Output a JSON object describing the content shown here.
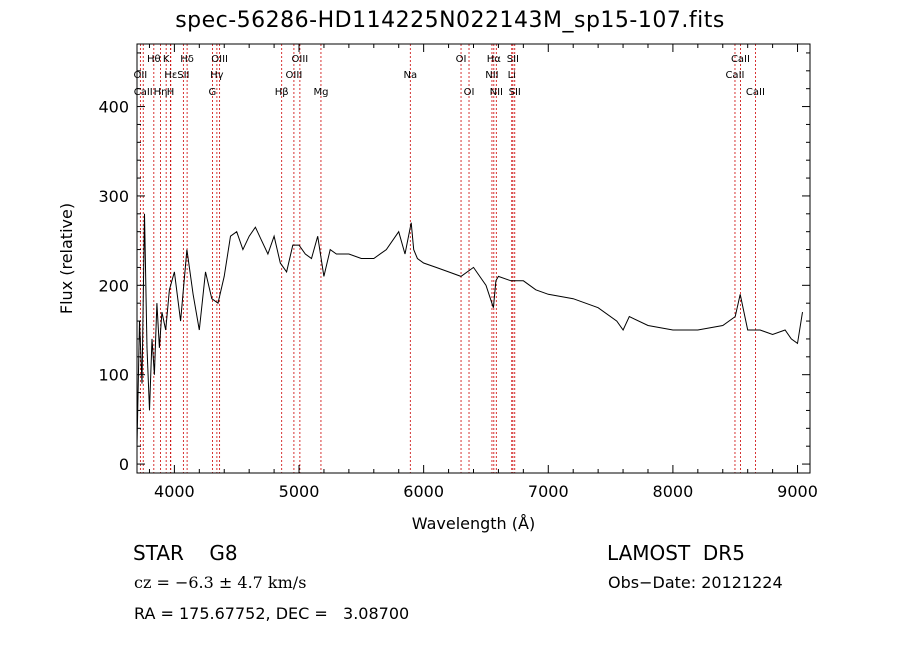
{
  "chart_data": {
    "type": "line",
    "title": "spec-56286-HD114225N022143M_sp15-107.fits",
    "xlabel": "Wavelength (Å)",
    "ylabel": "Flux (relative)",
    "xlim": [
      3700,
      9100
    ],
    "ylim": [
      -10,
      470
    ],
    "xticks": [
      4000,
      5000,
      6000,
      7000,
      8000,
      9000
    ],
    "yticks": [
      0,
      100,
      200,
      300,
      400
    ],
    "grid": false,
    "line_color": "#000000",
    "marker_color": "#cc0000",
    "series": [
      {
        "x": [
          3700,
          3720,
          3740,
          3760,
          3780,
          3800,
          3820,
          3840,
          3860,
          3880,
          3900,
          3930,
          3960,
          4000,
          4050,
          4100,
          4150,
          4200,
          4250,
          4300,
          4350,
          4400,
          4450,
          4500,
          4550,
          4600,
          4650,
          4700,
          4750,
          4800,
          4850,
          4900,
          4950,
          5000,
          5050,
          5100,
          5150,
          5200,
          5250,
          5300,
          5400,
          5500,
          5600,
          5700,
          5800,
          5850,
          5900,
          5920,
          5950,
          6000,
          6100,
          6200,
          6300,
          6400,
          6500,
          6560,
          6580,
          6600,
          6700,
          6800,
          6900,
          7000,
          7200,
          7400,
          7550,
          7600,
          7650,
          7800,
          8000,
          8200,
          8400,
          8500,
          8540,
          8600,
          8700,
          8800,
          8900,
          8950,
          9000,
          9040
        ],
        "y": [
          20,
          160,
          90,
          280,
          130,
          60,
          140,
          100,
          180,
          130,
          170,
          150,
          195,
          215,
          160,
          240,
          190,
          150,
          215,
          185,
          180,
          210,
          255,
          260,
          240,
          255,
          265,
          250,
          235,
          255,
          225,
          215,
          245,
          245,
          235,
          230,
          255,
          210,
          240,
          235,
          235,
          230,
          230,
          240,
          260,
          235,
          270,
          240,
          230,
          225,
          220,
          215,
          210,
          220,
          200,
          175,
          205,
          210,
          205,
          205,
          195,
          190,
          185,
          175,
          160,
          150,
          165,
          155,
          150,
          150,
          155,
          165,
          190,
          150,
          150,
          145,
          150,
          140,
          135,
          170
        ]
      }
    ],
    "lines": [
      {
        "wl": 3727,
        "label": "OII",
        "row": 2
      },
      {
        "wl": 3750,
        "label": "CaII",
        "row": 3
      },
      {
        "wl": 3835,
        "label": "Hθ",
        "row": 1
      },
      {
        "wl": 3889,
        "label": "Hη",
        "row": 3
      },
      {
        "wl": 3934,
        "label": "K",
        "row": 1
      },
      {
        "wl": 3969,
        "label": "H",
        "row": 3
      },
      {
        "wl": 3971,
        "label": "Hε",
        "row": 2
      },
      {
        "wl": 4072,
        "label": "SII",
        "row": 2
      },
      {
        "wl": 4102,
        "label": "Hδ",
        "row": 1
      },
      {
        "wl": 4305,
        "label": "G",
        "row": 3
      },
      {
        "wl": 4341,
        "label": "Hγ",
        "row": 2
      },
      {
        "wl": 4363,
        "label": "OIII",
        "row": 1
      },
      {
        "wl": 4861,
        "label": "Hβ",
        "row": 3
      },
      {
        "wl": 4959,
        "label": "OIII",
        "row": 2
      },
      {
        "wl": 5007,
        "label": "OIII",
        "row": 1
      },
      {
        "wl": 5176,
        "label": "Mg",
        "row": 3
      },
      {
        "wl": 5893,
        "label": "Na",
        "row": 2
      },
      {
        "wl": 6300,
        "label": "OI",
        "row": 1
      },
      {
        "wl": 6364,
        "label": "OI",
        "row": 3
      },
      {
        "wl": 6548,
        "label": "NII",
        "row": 2
      },
      {
        "wl": 6563,
        "label": "Hα",
        "row": 1
      },
      {
        "wl": 6583,
        "label": "NII",
        "row": 3
      },
      {
        "wl": 6707,
        "label": "Li",
        "row": 2
      },
      {
        "wl": 6716,
        "label": "SII",
        "row": 1
      },
      {
        "wl": 6731,
        "label": "SII",
        "row": 3
      },
      {
        "wl": 8498,
        "label": "CaII",
        "row": 2
      },
      {
        "wl": 8542,
        "label": "CaII",
        "row": 1
      },
      {
        "wl": 8662,
        "label": "CaII",
        "row": 3
      }
    ]
  },
  "info": {
    "star_type": "STAR    G8",
    "survey": "LAMOST  DR5",
    "cz": "cz = −6.3 ± 4.7 km/s",
    "obs_date": "Obs−Date: 20121224",
    "radec": "RA = 175.67752, DEC =   3.08700"
  }
}
